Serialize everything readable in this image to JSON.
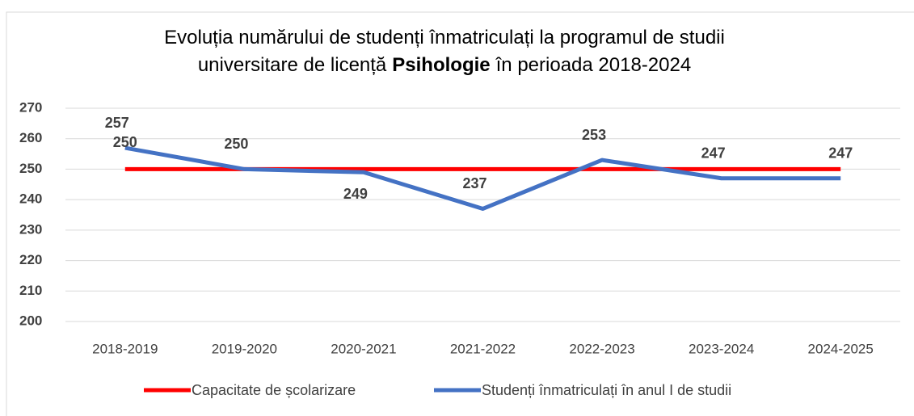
{
  "chart_data": {
    "type": "line",
    "title": [
      [
        "Evoluția numărului de studenți înmatriculați la programul de studii"
      ],
      [
        "universitare de licență",
        "Psihologie",
        "în perioada 2018-2024"
      ]
    ],
    "categories": [
      "2018-2019",
      "2019-2020",
      "2020-2021",
      "2021-2022",
      "2022-2023",
      "2023-2024",
      "2024-2025"
    ],
    "series": [
      {
        "name": "Capacitate de școlarizare",
        "color": "#ff0000",
        "values": [
          250,
          250,
          250,
          250,
          250,
          250,
          250
        ]
      },
      {
        "name": "Studenți înmatriculați în anul I de studii",
        "color": "#4472c4",
        "values": [
          257,
          250,
          249,
          237,
          253,
          247,
          247
        ]
      }
    ],
    "ylim": [
      200,
      270
    ],
    "yticks": [
      200,
      210,
      220,
      230,
      240,
      250,
      260,
      270
    ],
    "grid": true,
    "legend": "bottom"
  }
}
